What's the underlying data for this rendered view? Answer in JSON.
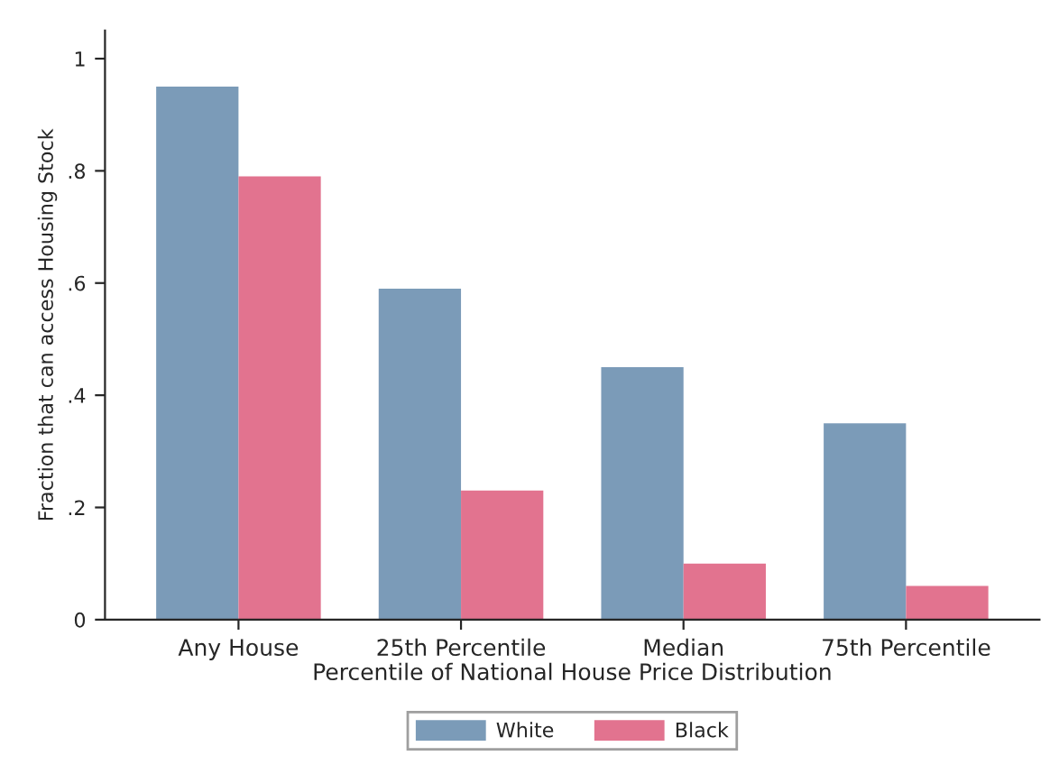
{
  "chart_data": {
    "type": "bar",
    "xlabel": "Percentile of National House Price Distribution",
    "ylabel": "Fraction that can access Housing Stock",
    "categories": [
      "Any House",
      "25th Percentile",
      "Median",
      "75th Percentile"
    ],
    "series": [
      {
        "name": "White",
        "color": "#7b9bb8",
        "values": [
          0.95,
          0.59,
          0.45,
          0.35
        ]
      },
      {
        "name": "Black",
        "color": "#e2738f",
        "values": [
          0.79,
          0.23,
          0.1,
          0.06
        ]
      }
    ],
    "ylim": [
      0,
      1.05
    ],
    "yticks": [
      0,
      {
        "value": 0.2,
        "label": ".2"
      },
      {
        "value": 0.4,
        "label": ".4"
      },
      {
        "value": 0.6,
        "label": ".6"
      },
      {
        "value": 0.8,
        "label": ".8"
      },
      1
    ],
    "grid": false,
    "legend": "bottom"
  }
}
